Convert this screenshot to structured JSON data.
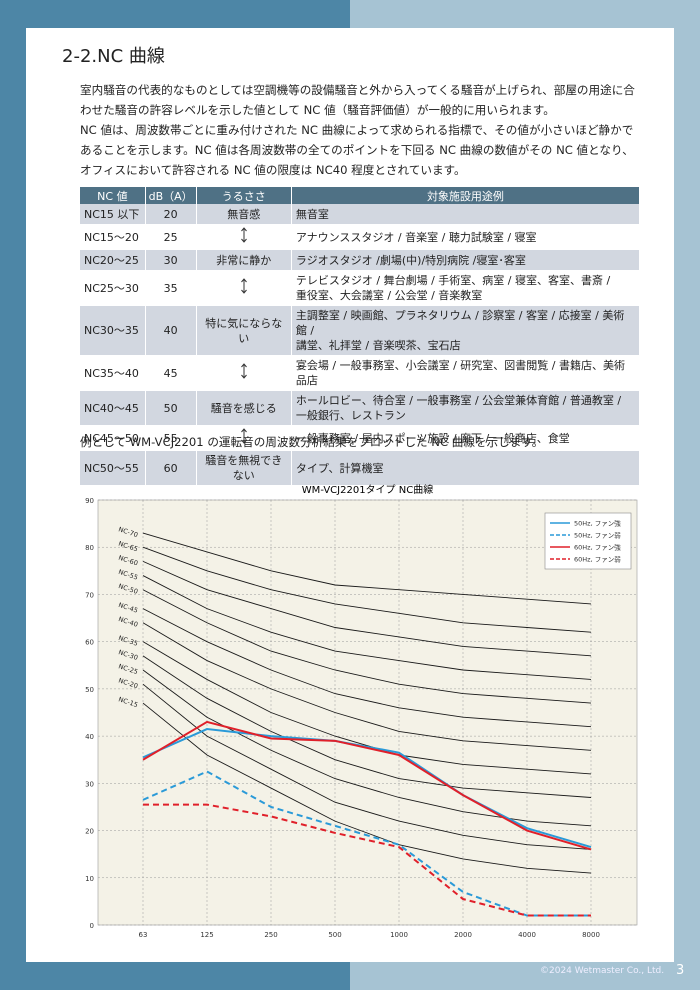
{
  "header": {
    "title": "2-2.NC 曲線"
  },
  "paragraphs": [
    [
      "室内騒音の代表的なものとしては空調機等の設備騒音と外から入ってくる騒音が上げられ、部屋の用途に合",
      "わせた騒音の許容レベルを示した値として NC 値（騒音評価値）が一般的に用いられます。"
    ],
    [
      "NC 値は、周波数帯ごとに重み付けされた NC 曲線によって求められる指標で、その値が小さいほど静かで",
      "あることを示します。NC 値は各周波数帯の全てのポイントを下回る NC 曲線の数値がその NC 値となり、",
      "オフィスにおいて許容される NC 値の限度は NC40 程度とされています。"
    ]
  ],
  "table": {
    "headers": [
      "NC 値",
      "dB（A）",
      "うるささ",
      "対象施設用途例"
    ],
    "rows": [
      [
        "NC15 以下",
        "20",
        "無音感",
        [
          "無音室"
        ]
      ],
      [
        "NC15～20",
        "25",
        null,
        [
          "アナウンススタジオ / 音楽室 / 聴力試験室 / 寝室"
        ]
      ],
      [
        "NC20～25",
        "30",
        "非常に静か",
        [
          "ラジオスタジオ /劇場(中)/特別病院 /寝室･客室"
        ]
      ],
      [
        "NC25～30",
        "35",
        null,
        [
          "テレビスタジオ / 舞台劇場 / 手術室、病室 / 寝室、客室、書斎 /",
          "重役室、大会議室 / 公会堂 / 音楽教室"
        ]
      ],
      [
        "NC30～35",
        "40",
        "特に気にならない",
        [
          "主調整室 / 映画館、プラネタリウム / 診察室 / 客室 / 応接室 / 美術館 /",
          "講堂、礼拝堂 / 音楽喫茶、宝石店"
        ]
      ],
      [
        "NC35～40",
        "45",
        null,
        [
          "宴会場 / 一般事務室、小会議室 / 研究室、図書閲覧 / 書籍店、美術品店"
        ]
      ],
      [
        "NC40～45",
        "50",
        "騒音を感じる",
        [
          "ホールロビー、待合室 / 一般事務室 / 公会堂兼体育館 / 普通教室 /",
          "一般銀行、レストラン"
        ]
      ],
      [
        "NC45～50",
        "55",
        null,
        [
          "一般事務室 / 屋内スポーツ施設 / 廊下 / 一般商店、食堂"
        ]
      ],
      [
        "NC50～55",
        "60",
        "騒音を無視できない",
        [
          "タイプ、計算機室"
        ]
      ]
    ]
  },
  "intro": "例として WM-VCJ2201 の運転音の周波数分析結果をプロットした NC 曲線を示します。",
  "chart_data": {
    "type": "line",
    "title": "WM-VCJ2201タイプ NC曲線",
    "categories": [
      "63",
      "125",
      "250",
      "500",
      "1000",
      "2000",
      "4000",
      "8000"
    ],
    "ylim": [
      0,
      90
    ],
    "yticks": [
      0,
      10,
      20,
      30,
      40,
      50,
      60,
      70,
      80,
      90
    ],
    "grid": true,
    "legend": "top-right",
    "nc_color": "#1a1a1a",
    "nc_curves": [
      {
        "name": "NC-70",
        "values": [
          83,
          79,
          75,
          72,
          71,
          70,
          69,
          68
        ]
      },
      {
        "name": "NC-65",
        "values": [
          80,
          75,
          71,
          68,
          66,
          64,
          63,
          62
        ]
      },
      {
        "name": "NC-60",
        "values": [
          77,
          71,
          67,
          63,
          61,
          59,
          58,
          57
        ]
      },
      {
        "name": "NC-55",
        "values": [
          74,
          67,
          62,
          58,
          56,
          54,
          53,
          52
        ]
      },
      {
        "name": "NC-50",
        "values": [
          71,
          64,
          58,
          54,
          51,
          49,
          48,
          47
        ]
      },
      {
        "name": "NC-45",
        "values": [
          67,
          60,
          54,
          49,
          46,
          44,
          43,
          42
        ]
      },
      {
        "name": "NC-40",
        "values": [
          64,
          56,
          50,
          45,
          41,
          39,
          38,
          37
        ]
      },
      {
        "name": "NC-35",
        "values": [
          60,
          52,
          45,
          40,
          36,
          34,
          33,
          32
        ]
      },
      {
        "name": "NC-30",
        "values": [
          57,
          48,
          41,
          35,
          31,
          29,
          28,
          27
        ]
      },
      {
        "name": "NC-25",
        "values": [
          54,
          44,
          37,
          31,
          27,
          24,
          22,
          21
        ]
      },
      {
        "name": "NC-20",
        "values": [
          51,
          40,
          33,
          26,
          22,
          19,
          17,
          16
        ]
      },
      {
        "name": "NC-15",
        "values": [
          47,
          36,
          29,
          22,
          17,
          14,
          12,
          11
        ]
      }
    ],
    "series": [
      {
        "name": "50Hz, ファン強",
        "color": "#2a9ad8",
        "dash": false,
        "values": [
          35.5,
          41.5,
          40,
          39,
          36.5,
          27.5,
          20.5,
          16.5
        ]
      },
      {
        "name": "50Hz, ファン弱",
        "color": "#2a9ad8",
        "dash": true,
        "values": [
          26.5,
          32.5,
          25,
          21,
          17,
          7,
          2,
          2
        ]
      },
      {
        "name": "60Hz, ファン強",
        "color": "#e0202a",
        "dash": false,
        "values": [
          35,
          43,
          39.5,
          39,
          36,
          27.5,
          20,
          16
        ]
      },
      {
        "name": "60Hz, ファン弱",
        "color": "#e0202a",
        "dash": true,
        "values": [
          25.5,
          25.5,
          23,
          19.5,
          16.5,
          5.5,
          2,
          2
        ]
      }
    ]
  },
  "footer": {
    "copyright": "©2024 Wetmaster Co., Ltd.",
    "page": "3"
  }
}
